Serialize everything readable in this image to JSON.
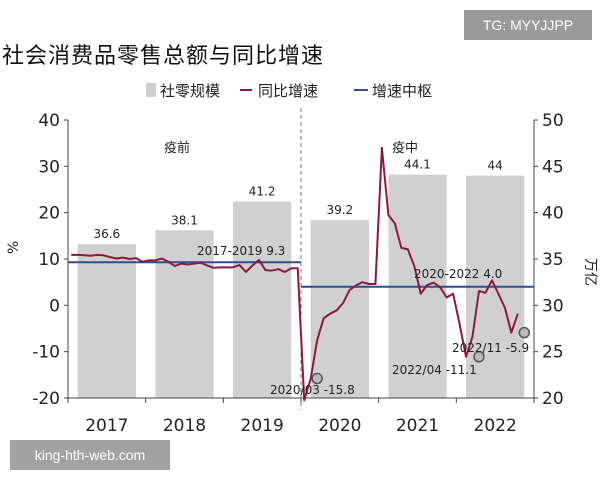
{
  "watermarks": {
    "top": "TG: MYYJJPP",
    "bottom": "king-hth-web.com"
  },
  "chart_data": {
    "type": "bar+line",
    "title": "社会消费品零售总额与同比增速",
    "legend": {
      "placement": "top",
      "items": [
        {
          "name": "社零规模",
          "kind": "bar",
          "color": "#d0d0d0"
        },
        {
          "name": "同比增速",
          "kind": "line",
          "color": "#8b1a3a"
        },
        {
          "name": "增速中枢",
          "kind": "line",
          "color": "#2f4f8a"
        }
      ]
    },
    "axes": {
      "y_left": {
        "label": "%",
        "min": -20,
        "max": 40,
        "ticks": [
          -20,
          -10,
          0,
          10,
          20,
          30,
          40
        ]
      },
      "y_right": {
        "label": "万亿",
        "min": 20,
        "max": 50,
        "ticks": [
          20,
          25,
          30,
          35,
          40,
          45,
          50
        ]
      },
      "x": {
        "categories": [
          "2017",
          "2018",
          "2019",
          "2020",
          "2021",
          "2022"
        ]
      }
    },
    "bars": {
      "name": "社零规模",
      "values": [
        36.6,
        38.1,
        41.2,
        39.2,
        44.1,
        44
      ],
      "labels": [
        "36.6",
        "38.1",
        "41.2",
        "39.2",
        "44.1",
        "44"
      ]
    },
    "growth_line": {
      "name": "同比增速",
      "start": "2017-01",
      "values": [
        10.9,
        10.9,
        10.8,
        10.7,
        10.9,
        10.8,
        10.4,
        10.1,
        10.3,
        10.0,
        10.2,
        9.4,
        9.7,
        9.7,
        10.1,
        9.4,
        8.5,
        9.0,
        8.8,
        9.0,
        9.2,
        8.6,
        8.1,
        8.2,
        8.2,
        8.2,
        8.7,
        7.2,
        8.6,
        9.8,
        7.6,
        7.5,
        7.8,
        7.2,
        8.0,
        8.0,
        -20.5,
        -15.8,
        -7.5,
        -2.8,
        -1.8,
        -1.1,
        0.5,
        3.3,
        4.3,
        5.0,
        4.6,
        4.6,
        34.0,
        19.5,
        17.7,
        12.4,
        12.1,
        8.5,
        2.5,
        4.4,
        4.9,
        3.9,
        1.7,
        2.5,
        -4.0,
        -11.1,
        -6.7,
        3.1,
        2.7,
        5.4,
        2.5,
        -0.5,
        -5.9,
        -1.8
      ]
    },
    "center_lines": [
      {
        "name": "2017-2019",
        "value": 9.3,
        "from": "2017-01",
        "to": "2019-12",
        "label": "2017-2019 9.3"
      },
      {
        "name": "2020-2022",
        "value": 4.0,
        "from": "2020-01",
        "to": "2022-12",
        "label": "2020-2022 4.0"
      }
    ],
    "periods": [
      {
        "label": "疫前"
      },
      {
        "label": "疫中"
      }
    ],
    "annotations": [
      {
        "date": "2020-03",
        "value": -15.8,
        "label": "2020/03 -15.8"
      },
      {
        "date": "2022-04",
        "value": -11.1,
        "label": "2022/04 -11.1"
      },
      {
        "date": "2022-11",
        "value": -5.9,
        "label": "2022/11 -5.9"
      }
    ]
  }
}
